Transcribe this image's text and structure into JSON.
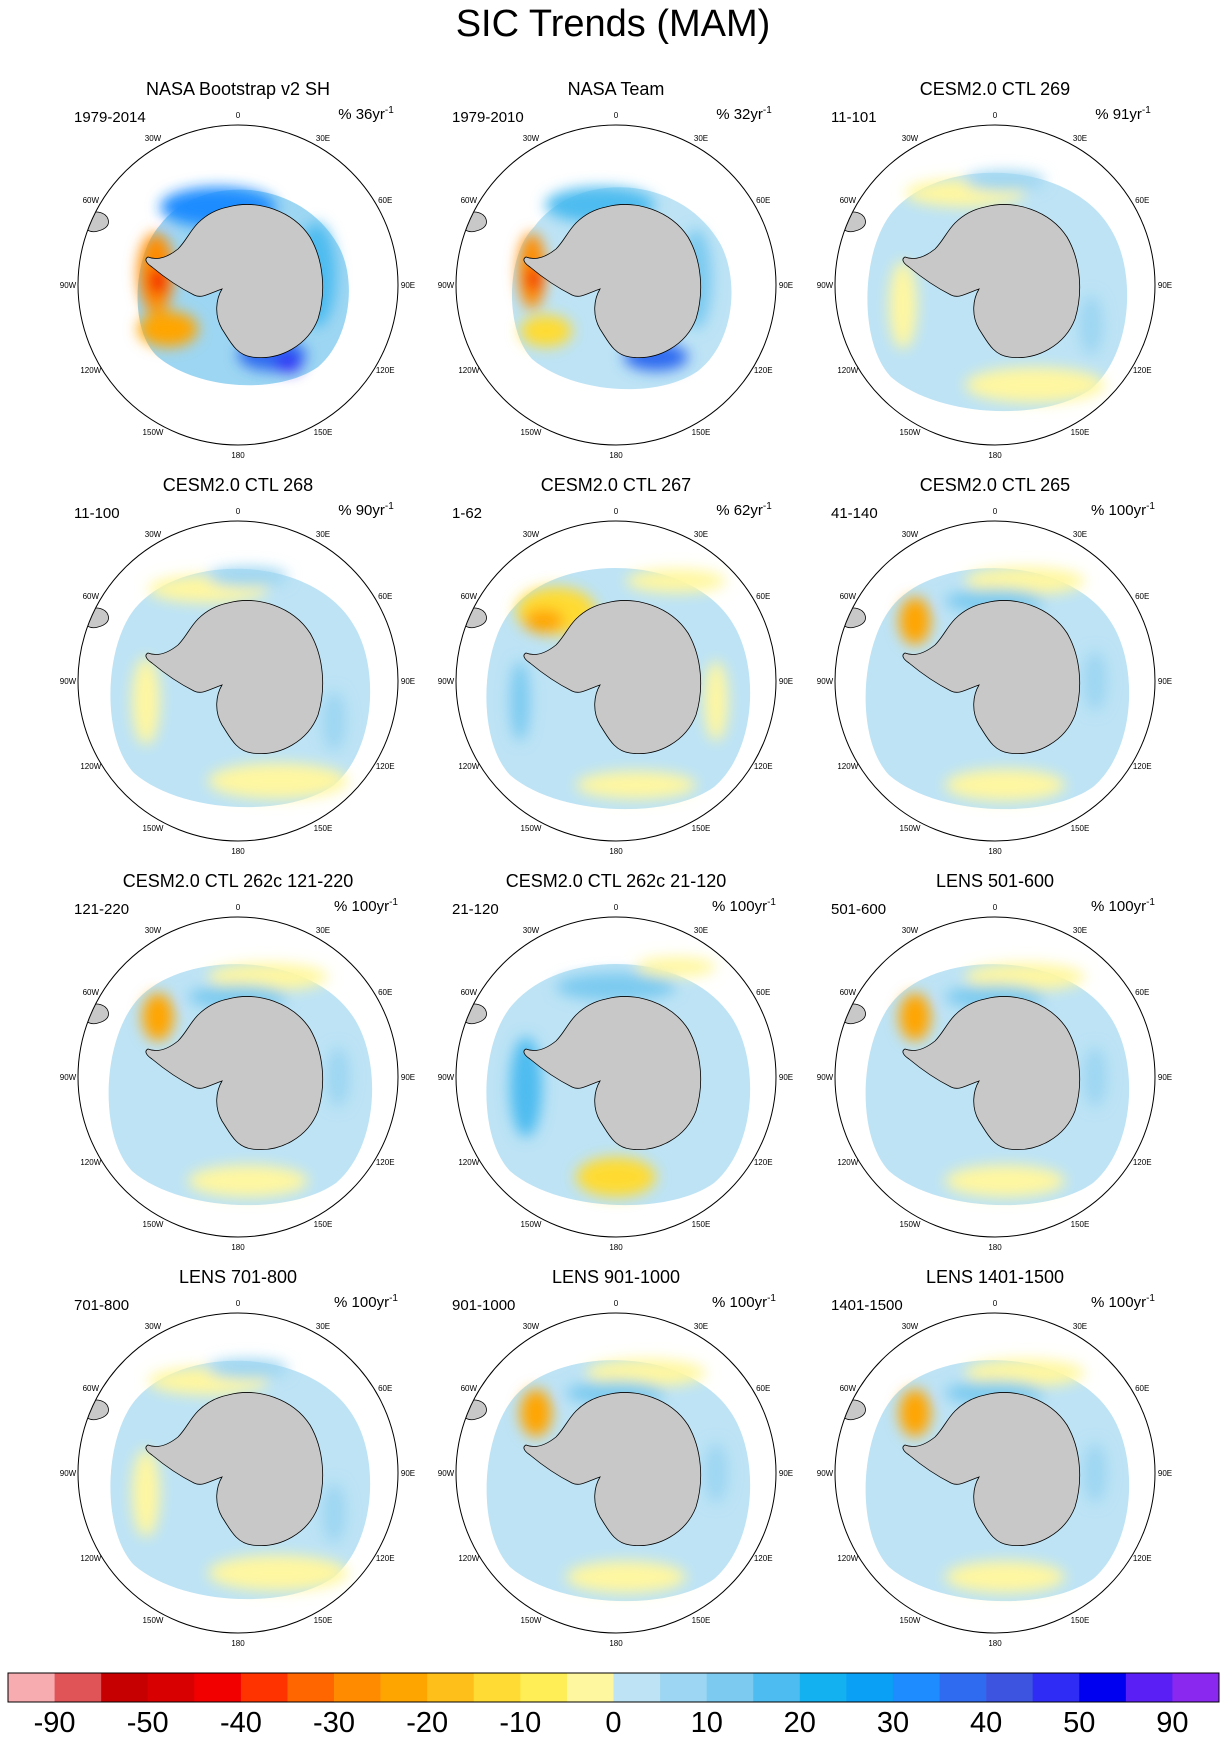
{
  "chart_data": {
    "type": "heatmap",
    "title": "SIC Trends (MAM)",
    "projection": "south polar stereographic",
    "lon_labels": [
      "0",
      "30E",
      "60E",
      "90E",
      "120E",
      "150E",
      "180",
      "150W",
      "120W",
      "90W",
      "60W",
      "30W"
    ],
    "panels": [
      {
        "title": "NASA Bootstrap v2 SH",
        "period": "1979-2014",
        "units_base": "% ",
        "units_value": "36yr",
        "units_exp": "-1"
      },
      {
        "title": "NASA Team",
        "period": "1979-2010",
        "units_base": "% ",
        "units_value": "32yr",
        "units_exp": "-1"
      },
      {
        "title": "CESM2.0 CTL 269",
        "period": "11-101",
        "units_base": "% ",
        "units_value": "91yr",
        "units_exp": "-1"
      },
      {
        "title": "CESM2.0 CTL 268",
        "period": "11-100",
        "units_base": "% ",
        "units_value": "90yr",
        "units_exp": "-1"
      },
      {
        "title": "CESM2.0 CTL 267",
        "period": "1-62",
        "units_base": "% ",
        "units_value": "62yr",
        "units_exp": "-1"
      },
      {
        "title": "CESM2.0 CTL 265",
        "period": "41-140",
        "units_base": "% ",
        "units_value": "100yr",
        "units_exp": "-1"
      },
      {
        "title": "CESM2.0 CTL 262c 121-220",
        "period": "121-220",
        "units_base": "% ",
        "units_value": "100yr",
        "units_exp": "-1"
      },
      {
        "title": "CESM2.0 CTL 262c 21-120",
        "period": "21-120",
        "units_base": "% ",
        "units_value": "100yr",
        "units_exp": "-1"
      },
      {
        "title": "LENS 501-600",
        "period": "501-600",
        "units_base": "% ",
        "units_value": "100yr",
        "units_exp": "-1"
      },
      {
        "title": "LENS 701-800",
        "period": "701-800",
        "units_base": "% ",
        "units_value": "100yr",
        "units_exp": "-1"
      },
      {
        "title": "LENS 901-1000",
        "period": "901-1000",
        "units_base": "% ",
        "units_value": "100yr",
        "units_exp": "-1"
      },
      {
        "title": "LENS 1401-1500",
        "period": "1401-1500",
        "units_base": "% ",
        "units_value": "100yr",
        "units_exp": "-1"
      }
    ],
    "colorbar": {
      "colors": [
        "#f7acb0",
        "#e05357",
        "#c60000",
        "#d80000",
        "#f20000",
        "#ff3300",
        "#ff6600",
        "#ff8c00",
        "#ffa500",
        "#ffbf1a",
        "#ffdb33",
        "#ffee55",
        "#fff7a0",
        "#bde3f5",
        "#9dd6f2",
        "#7ccaf0",
        "#4dbcf0",
        "#14b1f0",
        "#0aa0f5",
        "#1e8cff",
        "#2f6bf0",
        "#3c54e0",
        "#2e2cf5",
        "#0000f0",
        "#5a1ff5",
        "#8a28f0"
      ],
      "tick_labels": [
        "-90",
        "-50",
        "-40",
        "-30",
        "-20",
        "-10",
        "0",
        "10",
        "20",
        "30",
        "40",
        "50",
        "90"
      ]
    }
  }
}
